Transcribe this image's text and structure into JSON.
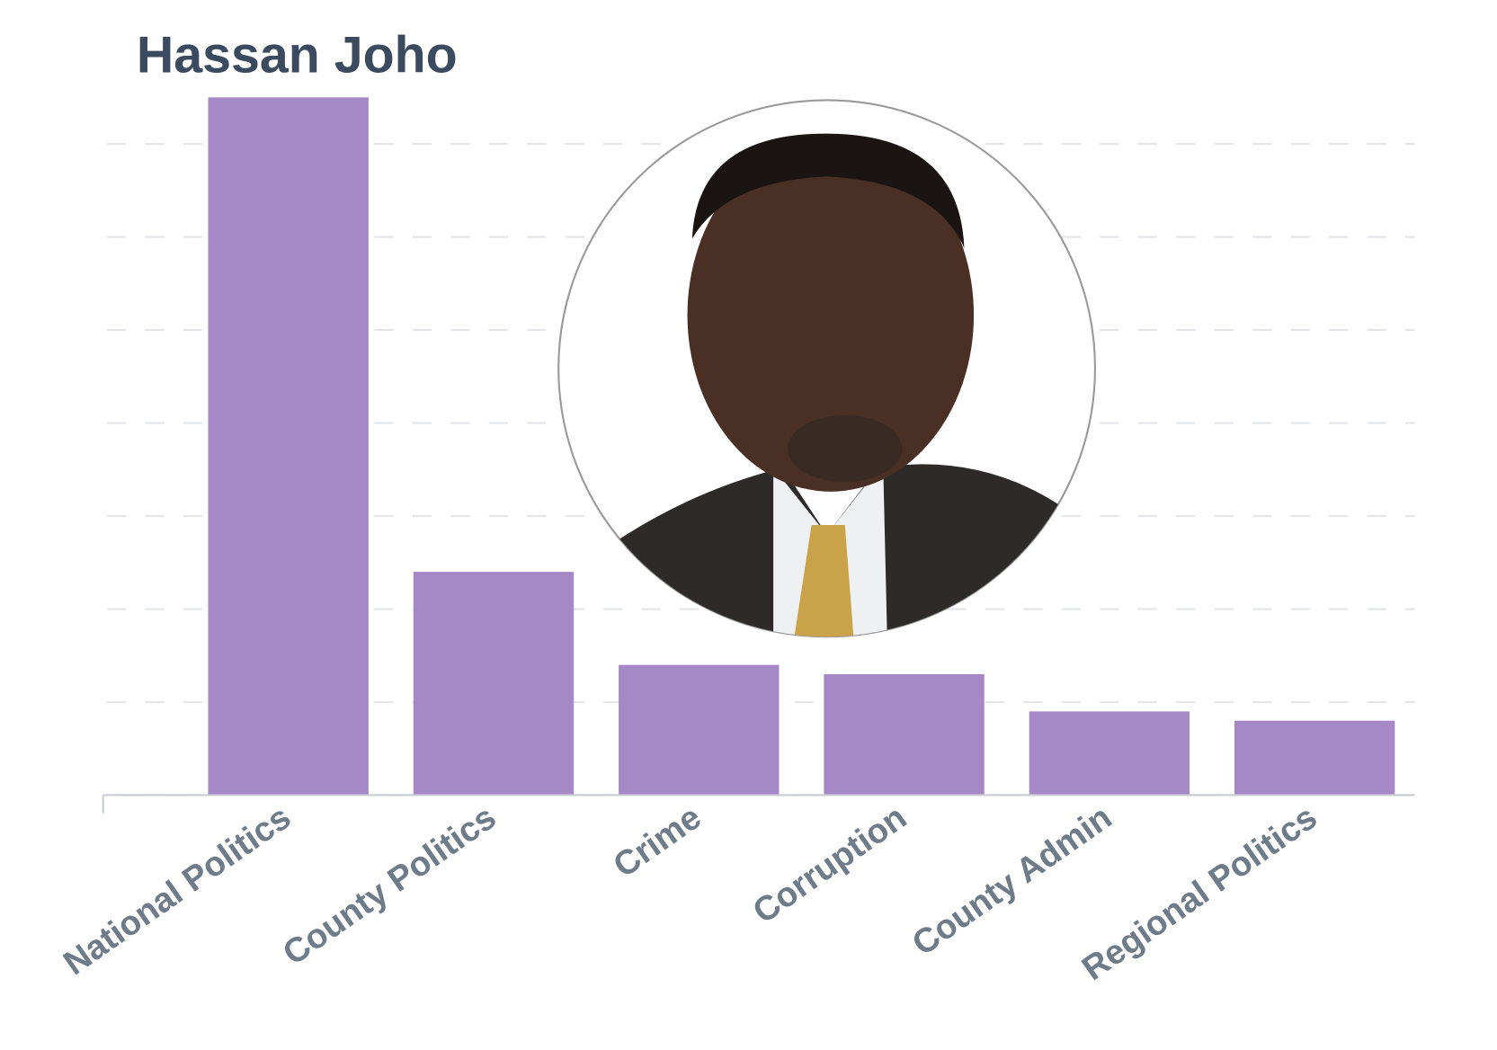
{
  "chart_data": {
    "type": "bar",
    "title": "Hassan Joho",
    "categories": [
      "National Politics",
      "County Politics",
      "Crime",
      "Corruption",
      "County Admin",
      "Regional Politics"
    ],
    "values": [
      7.5,
      2.4,
      1.4,
      1.3,
      0.9,
      0.8
    ],
    "color": "#a788c6",
    "ylim": [
      0,
      7.5
    ],
    "yticks": [
      0,
      1,
      2,
      3,
      4,
      5,
      6,
      7
    ],
    "grid": true
  }
}
